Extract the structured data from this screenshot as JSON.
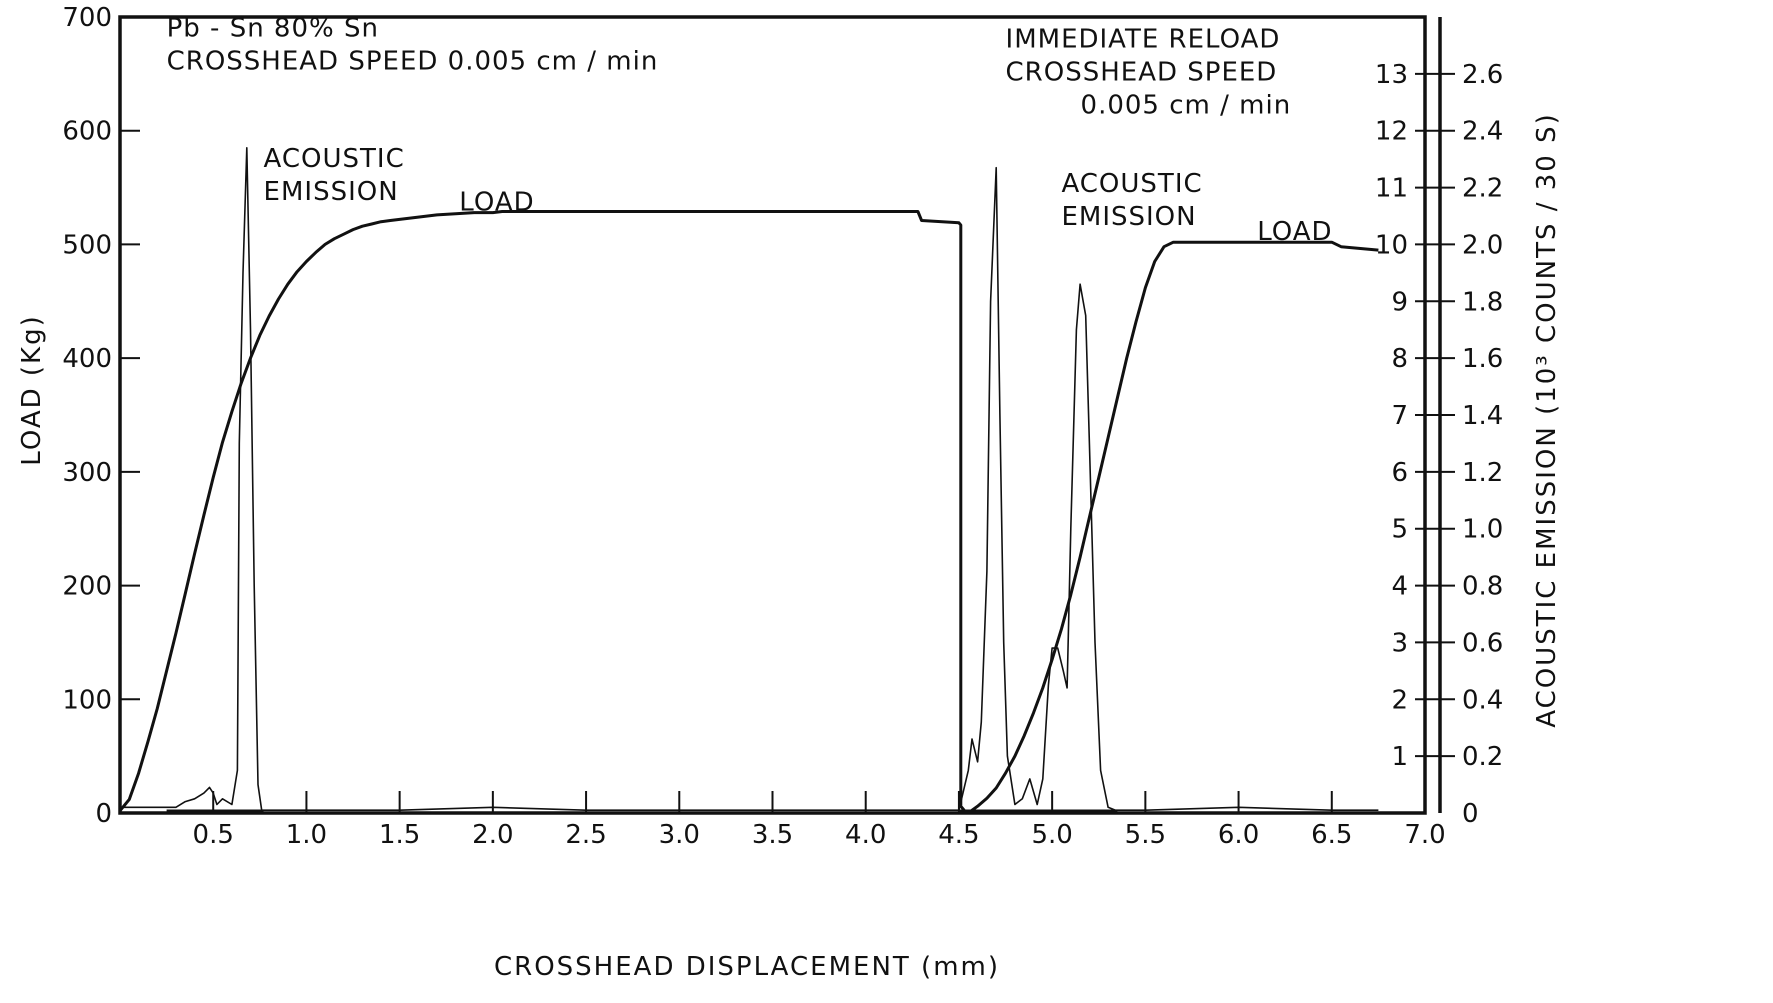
{
  "chart_data": {
    "type": "line",
    "title": "",
    "xlabel": "CROSSHEAD  DISPLACEMENT  (mm)",
    "ylabel": "LOAD  (Kg)",
    "y2label": "ACOUSTIC  EMISSION  (10³ COUNTS / 30 S)",
    "xlim": [
      0,
      7.0
    ],
    "ylim": [
      0,
      700
    ],
    "y2lim": [
      0,
      2.8
    ],
    "grid": false,
    "x_ticks": [
      0.5,
      1.0,
      1.5,
      2.0,
      2.5,
      3.0,
      3.5,
      4.0,
      4.5,
      5.0,
      5.5,
      6.0,
      6.5,
      7.0
    ],
    "x_tick_labels": [
      "0.5",
      "1.0",
      "1.5",
      "2.0",
      "2.5",
      "3.0",
      "3.5",
      "4.0",
      "4.5",
      "5.0",
      "5.5",
      "6.0",
      "6.5",
      "7.0"
    ],
    "y_ticks": [
      0,
      100,
      200,
      300,
      400,
      500,
      600,
      700
    ],
    "y_tick_labels": [
      "0",
      "100",
      "200",
      "300",
      "400",
      "500",
      "600",
      "700"
    ],
    "y2_inner_ticks": [
      1,
      2,
      3,
      4,
      5,
      6,
      7,
      8,
      9,
      10,
      11,
      12,
      13
    ],
    "y2_inner_tick_labels": [
      "1",
      "2",
      "3",
      "4",
      "5",
      "6",
      "7",
      "8",
      "9",
      "10",
      "11",
      "12",
      "13"
    ],
    "y2_outer_ticks": [
      0,
      0.2,
      0.4,
      0.6,
      0.8,
      1.0,
      1.2,
      1.4,
      1.6,
      1.8,
      2.0,
      2.2,
      2.4,
      2.6
    ],
    "y2_outer_tick_labels": [
      "0",
      "0.2",
      "0.4",
      "0.6",
      "0.8",
      "1.0",
      "1.2",
      "1.4",
      "1.6",
      "1.8",
      "2.0",
      "2.2",
      "2.4",
      "2.6"
    ],
    "annotations": [
      {
        "lines": [
          "Pb - Sn 80% Sn",
          "CROSSHEAD  SPEED  0.005  cm / min"
        ],
        "x": 0.25,
        "y": 683,
        "anchor": "start"
      },
      {
        "lines": [
          "IMMEDIATE  RELOAD",
          "CROSSHEAD  SPEED",
          "0.005  cm / min"
        ],
        "x": 4.75,
        "y": 673,
        "anchor": "start"
      },
      {
        "lines": [
          "ACOUSTIC",
          "EMISSION"
        ],
        "x": 0.77,
        "y": 568,
        "anchor": "start"
      },
      {
        "lines": [
          "ACOUSTIC",
          "EMISSION"
        ],
        "x": 5.05,
        "y": 546,
        "anchor": "start"
      },
      {
        "lines": [
          "LOAD"
        ],
        "x": 1.82,
        "y": 530,
        "anchor": "start"
      },
      {
        "lines": [
          "LOAD"
        ],
        "x": 6.1,
        "y": 504,
        "anchor": "start"
      }
    ],
    "series": [
      {
        "axis": "left",
        "stroke_width": 3,
        "color": "#111111",
        "x": [
          0,
          0.05,
          0.1,
          0.15,
          0.2,
          0.25,
          0.3,
          0.35,
          0.4,
          0.45,
          0.5,
          0.55,
          0.6,
          0.65,
          0.7,
          0.75,
          0.8,
          0.85,
          0.9,
          0.95,
          1.0,
          1.05,
          1.1,
          1.15,
          1.2,
          1.25,
          1.3,
          1.35,
          1.4,
          1.45,
          1.5,
          1.6,
          1.7,
          1.8,
          1.9,
          2.0,
          2.05,
          2.5,
          3.0,
          3.5,
          4.0,
          4.28,
          4.3,
          4.5,
          4.51,
          4.51,
          4.53,
          4.55,
          4.6,
          4.65,
          4.7,
          4.75,
          4.8,
          4.85,
          4.9,
          4.95,
          5.0,
          5.05,
          5.1,
          5.15,
          5.2,
          5.25,
          5.3,
          5.35,
          5.4,
          5.45,
          5.5,
          5.55,
          5.6,
          5.65,
          6.0,
          6.5,
          6.55,
          6.75
        ],
        "y": [
          2,
          12,
          35,
          63,
          92,
          125,
          158,
          193,
          228,
          262,
          295,
          326,
          353,
          378,
          400,
          420,
          437,
          452,
          465,
          476,
          485,
          493,
          500,
          505,
          509,
          513,
          516,
          518,
          520,
          521,
          522,
          524,
          526,
          527,
          528,
          528,
          529,
          529,
          529,
          529,
          529,
          529,
          521,
          519,
          517,
          6,
          2,
          0,
          6,
          13,
          22,
          35,
          50,
          68,
          88,
          110,
          135,
          162,
          192,
          225,
          260,
          295,
          330,
          365,
          400,
          432,
          462,
          485,
          498,
          502,
          502,
          502,
          498,
          495
        ]
      },
      {
        "axis": "right",
        "stroke_width": 1.6,
        "color": "#111111",
        "x": [
          0,
          0.3,
          0.35,
          0.4,
          0.45,
          0.48,
          0.5,
          0.52,
          0.55,
          0.6,
          0.63,
          0.64,
          0.66,
          0.68,
          0.7,
          0.72,
          0.74,
          0.76,
          0.8,
          1.0,
          1.5,
          2.0,
          2.5,
          3.0,
          3.5,
          4.0,
          4.5,
          4.55,
          4.57,
          4.6,
          4.62,
          4.65,
          4.67,
          4.7,
          4.72,
          4.74,
          4.76,
          4.8,
          4.84,
          4.88,
          4.92,
          4.95,
          4.98,
          5.0,
          5.03,
          5.06,
          5.08,
          5.1,
          5.13,
          5.15,
          5.18,
          5.2,
          5.23,
          5.26,
          5.3,
          5.34,
          5.38,
          5.5,
          6.0,
          6.5,
          6.75
        ],
        "y": [
          0.02,
          0.02,
          0.04,
          0.05,
          0.07,
          0.09,
          0.07,
          0.03,
          0.05,
          0.03,
          0.15,
          1.3,
          1.9,
          2.34,
          1.7,
          0.8,
          0.1,
          0.01,
          0.01,
          0.01,
          0.01,
          0.02,
          0.01,
          0.01,
          0.01,
          0.01,
          0.01,
          0.15,
          0.26,
          0.18,
          0.32,
          0.85,
          1.8,
          2.27,
          1.4,
          0.6,
          0.2,
          0.03,
          0.05,
          0.12,
          0.03,
          0.12,
          0.45,
          0.58,
          0.58,
          0.5,
          0.44,
          1.0,
          1.7,
          1.86,
          1.75,
          1.3,
          0.6,
          0.15,
          0.02,
          0.01,
          0.01,
          0.01,
          0.02,
          0.01,
          0.01
        ]
      }
    ],
    "baseline_segments": [
      [
        0.25,
        0.77
      ],
      [
        4.5,
        5.35
      ]
    ]
  }
}
